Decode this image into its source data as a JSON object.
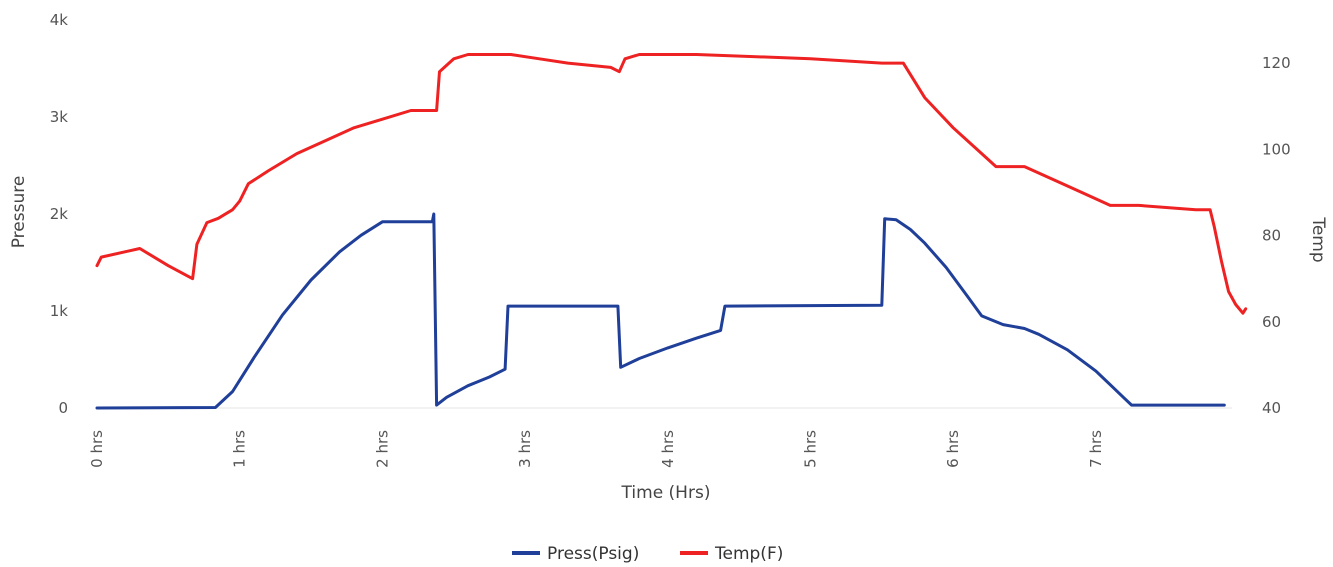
{
  "chart_data": {
    "type": "line",
    "title": "",
    "xlabel": "Time (Hrs)",
    "ylabel_left": "Pressure",
    "ylabel_right": "Temp",
    "xlim": [
      0,
      8
    ],
    "x_ticks": [
      {
        "value": 0,
        "label": "0 hrs"
      },
      {
        "value": 1,
        "label": "1 hrs"
      },
      {
        "value": 2,
        "label": "2 hrs"
      },
      {
        "value": 3,
        "label": "3 hrs"
      },
      {
        "value": 4,
        "label": "4 hrs"
      },
      {
        "value": 5,
        "label": "5 hrs"
      },
      {
        "value": 6,
        "label": "6 hrs"
      },
      {
        "value": 7,
        "label": "7 hrs"
      }
    ],
    "ylim_left": [
      0,
      4000
    ],
    "y_left_ticks": [
      {
        "value": 0,
        "label": "0"
      },
      {
        "value": 1000,
        "label": "1k"
      },
      {
        "value": 2000,
        "label": "2k"
      },
      {
        "value": 3000,
        "label": "3k"
      },
      {
        "value": 4000,
        "label": "4k"
      }
    ],
    "ylim_right": [
      40,
      130
    ],
    "y_right_ticks": [
      {
        "value": 40,
        "label": "40"
      },
      {
        "value": 60,
        "label": "60"
      },
      {
        "value": 80,
        "label": "80"
      },
      {
        "value": 100,
        "label": "100"
      },
      {
        "value": 120,
        "label": "120"
      }
    ],
    "grid": false,
    "legend_position": "bottom",
    "series": [
      {
        "name": "Press(Psig)",
        "color": "#1f3f99",
        "axis": "left",
        "points": [
          [
            0,
            0
          ],
          [
            0.83,
            5
          ],
          [
            0.95,
            170
          ],
          [
            1.1,
            520
          ],
          [
            1.3,
            960
          ],
          [
            1.5,
            1320
          ],
          [
            1.7,
            1610
          ],
          [
            1.85,
            1780
          ],
          [
            2.0,
            1920
          ],
          [
            2.05,
            1920
          ],
          [
            2.35,
            1920
          ],
          [
            2.36,
            2000
          ],
          [
            2.38,
            30
          ],
          [
            2.45,
            110
          ],
          [
            2.6,
            230
          ],
          [
            2.75,
            320
          ],
          [
            2.86,
            400
          ],
          [
            2.88,
            1050
          ],
          [
            3.65,
            1050
          ],
          [
            3.67,
            420
          ],
          [
            3.8,
            510
          ],
          [
            4.0,
            620
          ],
          [
            4.2,
            720
          ],
          [
            4.37,
            800
          ],
          [
            4.4,
            1050
          ],
          [
            5.5,
            1060
          ],
          [
            5.52,
            1950
          ],
          [
            5.6,
            1940
          ],
          [
            5.7,
            1840
          ],
          [
            5.8,
            1700
          ],
          [
            5.95,
            1450
          ],
          [
            6.1,
            1150
          ],
          [
            6.2,
            950
          ],
          [
            6.35,
            860
          ],
          [
            6.5,
            820
          ],
          [
            6.6,
            760
          ],
          [
            6.8,
            600
          ],
          [
            7.0,
            380
          ],
          [
            7.1,
            240
          ],
          [
            7.2,
            100
          ],
          [
            7.25,
            30
          ],
          [
            7.3,
            30
          ],
          [
            7.9,
            30
          ]
        ]
      },
      {
        "name": "Temp(F)",
        "color": "#ee2222",
        "axis": "right",
        "points": [
          [
            0,
            73
          ],
          [
            0.03,
            75
          ],
          [
            0.3,
            77
          ],
          [
            0.5,
            73
          ],
          [
            0.67,
            70
          ],
          [
            0.7,
            78
          ],
          [
            0.77,
            83
          ],
          [
            0.85,
            84
          ],
          [
            0.95,
            86
          ],
          [
            1.0,
            88
          ],
          [
            1.06,
            92
          ],
          [
            1.2,
            95
          ],
          [
            1.4,
            99
          ],
          [
            1.6,
            102
          ],
          [
            1.8,
            105
          ],
          [
            2.0,
            107
          ],
          [
            2.2,
            109
          ],
          [
            2.38,
            109
          ],
          [
            2.4,
            118
          ],
          [
            2.5,
            121
          ],
          [
            2.6,
            122
          ],
          [
            2.9,
            122
          ],
          [
            3.1,
            121
          ],
          [
            3.3,
            120
          ],
          [
            3.6,
            119
          ],
          [
            3.66,
            118
          ],
          [
            3.7,
            121
          ],
          [
            3.8,
            122
          ],
          [
            4.2,
            122
          ],
          [
            4.6,
            121.5
          ],
          [
            5.0,
            121
          ],
          [
            5.5,
            120
          ],
          [
            5.55,
            120
          ],
          [
            5.65,
            120
          ],
          [
            5.8,
            112
          ],
          [
            6.0,
            105
          ],
          [
            6.2,
            99
          ],
          [
            6.3,
            96
          ],
          [
            6.5,
            96
          ],
          [
            6.7,
            93
          ],
          [
            6.9,
            90
          ],
          [
            7.1,
            87
          ],
          [
            7.3,
            87
          ],
          [
            7.7,
            86
          ],
          [
            7.8,
            86
          ],
          [
            7.83,
            82
          ],
          [
            7.88,
            74
          ],
          [
            7.93,
            67
          ],
          [
            7.98,
            64
          ],
          [
            8.03,
            62
          ],
          [
            8.05,
            63
          ]
        ]
      }
    ]
  }
}
